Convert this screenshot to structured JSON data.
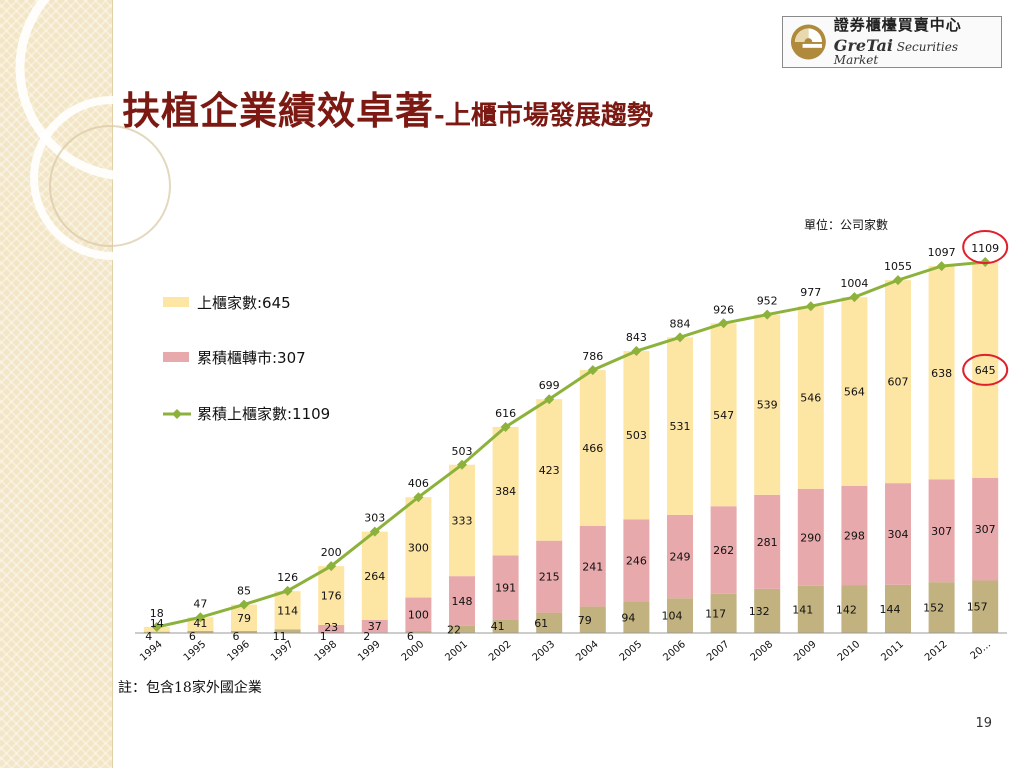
{
  "title": {
    "main": "扶植企業績效卓著",
    "sep": "-",
    "sub": "上櫃市場發展趨勢"
  },
  "logo": {
    "cn": "證券櫃檯買賣中心",
    "en_brand": "GreTai",
    "en_rest": "Securities Market"
  },
  "unit_label": "單位：公司家數",
  "note": "註：包含18家外國企業",
  "page_number": "19",
  "colors": {
    "listed": "#fde5a4",
    "transferred": "#e8a9ac",
    "base": "#c2b280",
    "line": "#8cb23c",
    "title": "#7b1912",
    "highlight": "#e0202a"
  },
  "chart_data": {
    "type": "bar",
    "stacked": true,
    "categories": [
      "1994",
      "1995",
      "1996",
      "1997",
      "1998",
      "1999",
      "2000",
      "2001",
      "2002",
      "2003",
      "2004",
      "2005",
      "2006",
      "2007",
      "2008",
      "2009",
      "2010",
      "2011",
      "2012",
      "20…"
    ],
    "series": [
      {
        "name": "",
        "kind": "bar",
        "values": [
          4,
          6,
          6,
          11,
          1,
          2,
          6,
          22,
          41,
          61,
          79,
          94,
          104,
          117,
          132,
          141,
          142,
          144,
          152,
          157
        ],
        "labels": [
          "4",
          "6",
          "6",
          "11",
          "1",
          "2",
          "6",
          "22",
          "41",
          "61",
          "79",
          "94",
          "104",
          "117",
          "132",
          "141",
          "142",
          "144",
          "152",
          "157"
        ]
      },
      {
        "name": "累積櫃轉市:307",
        "kind": "bar",
        "values": [
          0,
          0,
          0,
          0,
          23,
          37,
          100,
          148,
          191,
          215,
          241,
          246,
          249,
          262,
          281,
          290,
          298,
          304,
          307,
          307
        ],
        "labels": [
          "",
          "",
          "",
          "",
          "23",
          "37",
          "100",
          "148",
          "191",
          "215",
          "241",
          "246",
          "249",
          "262",
          "281",
          "290",
          "298",
          "304",
          "307",
          "307"
        ]
      },
      {
        "name": "上櫃家數:645",
        "kind": "bar",
        "values": [
          14,
          41,
          79,
          114,
          176,
          264,
          300,
          333,
          384,
          423,
          466,
          503,
          531,
          547,
          539,
          546,
          564,
          607,
          638,
          645
        ],
        "labels": [
          "14",
          "41",
          "79",
          "114",
          "176",
          "264",
          "300",
          "333",
          "384",
          "423",
          "466",
          "503",
          "531",
          "547",
          "539",
          "546",
          "564",
          "607",
          "638",
          "645"
        ]
      },
      {
        "name": "累積上櫃家數:1109",
        "kind": "line",
        "values": [
          18,
          47,
          85,
          126,
          200,
          303,
          406,
          503,
          616,
          699,
          786,
          843,
          884,
          926,
          952,
          977,
          1004,
          1055,
          1097,
          1109
        ],
        "labels": [
          "18",
          "47",
          "85",
          "126",
          "200",
          "303",
          "406",
          "503",
          "616",
          "699",
          "786",
          "843",
          "884",
          "926",
          "952",
          "977",
          "1004",
          "1055",
          "1097",
          "1109"
        ]
      }
    ],
    "highlighted": [
      "1109",
      "645"
    ],
    "legend_position": "left",
    "ylim": [
      0,
      1160
    ],
    "grid": false
  }
}
